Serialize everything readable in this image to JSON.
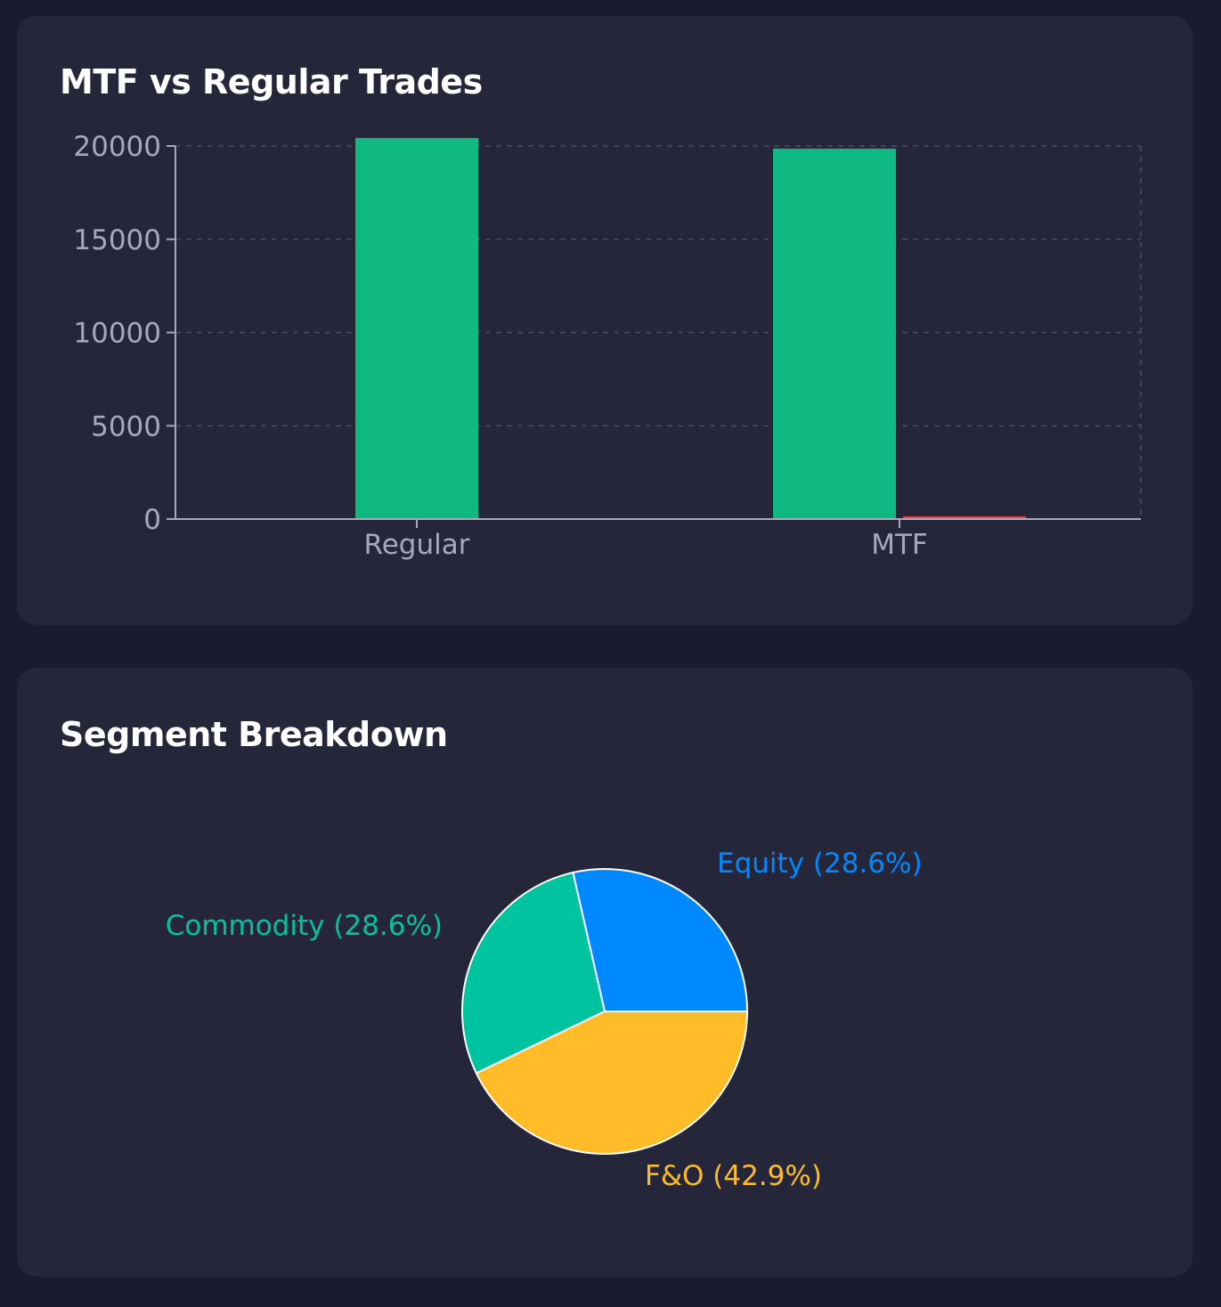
{
  "bar_card": {
    "title": "MTF vs Regular Trades"
  },
  "pie_card": {
    "title": "Segment Breakdown"
  },
  "chart_data": [
    {
      "type": "bar",
      "title": "MTF vs Regular Trades",
      "categories": [
        "Regular",
        "MTF"
      ],
      "series": [
        {
          "name": "green",
          "color": "#10b981",
          "values": [
            20430,
            19860
          ]
        },
        {
          "name": "red",
          "color": "#ef4444",
          "values": [
            null,
            60
          ]
        }
      ],
      "yticks": [
        0,
        5000,
        10000,
        15000,
        20000
      ],
      "ylim": [
        0,
        20000
      ],
      "grid": true
    },
    {
      "type": "pie",
      "title": "Segment Breakdown",
      "slices": [
        {
          "name": "Equity",
          "value": 28.6,
          "label": "Equity (28.6%)",
          "color": "#0088fe"
        },
        {
          "name": "Commodity",
          "value": 28.6,
          "label": "Commodity (28.6%)",
          "color": "#00c49f"
        },
        {
          "name": "F&O",
          "value": 42.9,
          "label": "F&O (42.9%)",
          "color": "#ffbb28"
        }
      ]
    }
  ]
}
